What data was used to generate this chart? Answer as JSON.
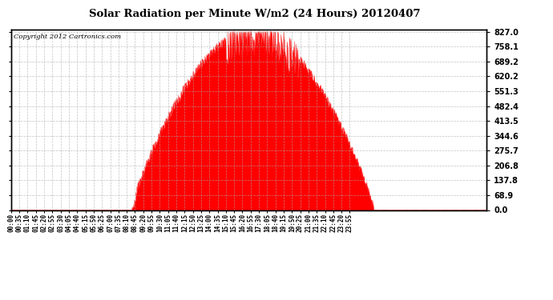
{
  "title": "Solar Radiation per Minute W/m2 (24 Hours) 20120407",
  "copyright": "Copyright 2012 Cartronics.com",
  "fill_color": "#FF0000",
  "line_color": "#FF0000",
  "dashed_line_color": "#FF0000",
  "background_color": "#FFFFFF",
  "grid_color": "#AAAAAA",
  "yticks": [
    0.0,
    68.9,
    137.8,
    206.8,
    275.7,
    344.6,
    413.5,
    482.4,
    551.3,
    620.2,
    689.2,
    758.1,
    827.0
  ],
  "ymax": 827.0,
  "ymin": 0.0,
  "total_minutes": 1440,
  "sunrise_minute": 362,
  "sunset_minute": 1098,
  "peak_minute": 775,
  "peak_value": 827.0,
  "xtick_labels": [
    "00:00",
    "00:35",
    "01:10",
    "01:45",
    "02:20",
    "02:55",
    "03:30",
    "04:05",
    "04:40",
    "05:15",
    "05:50",
    "06:25",
    "07:00",
    "07:35",
    "08:10",
    "08:45",
    "09:20",
    "09:55",
    "10:30",
    "11:05",
    "11:40",
    "12:15",
    "12:50",
    "13:25",
    "14:00",
    "14:35",
    "15:10",
    "15:45",
    "16:20",
    "16:55",
    "17:30",
    "18:05",
    "18:40",
    "19:15",
    "19:50",
    "20:25",
    "21:00",
    "21:35",
    "22:10",
    "22:45",
    "23:20",
    "23:55"
  ]
}
